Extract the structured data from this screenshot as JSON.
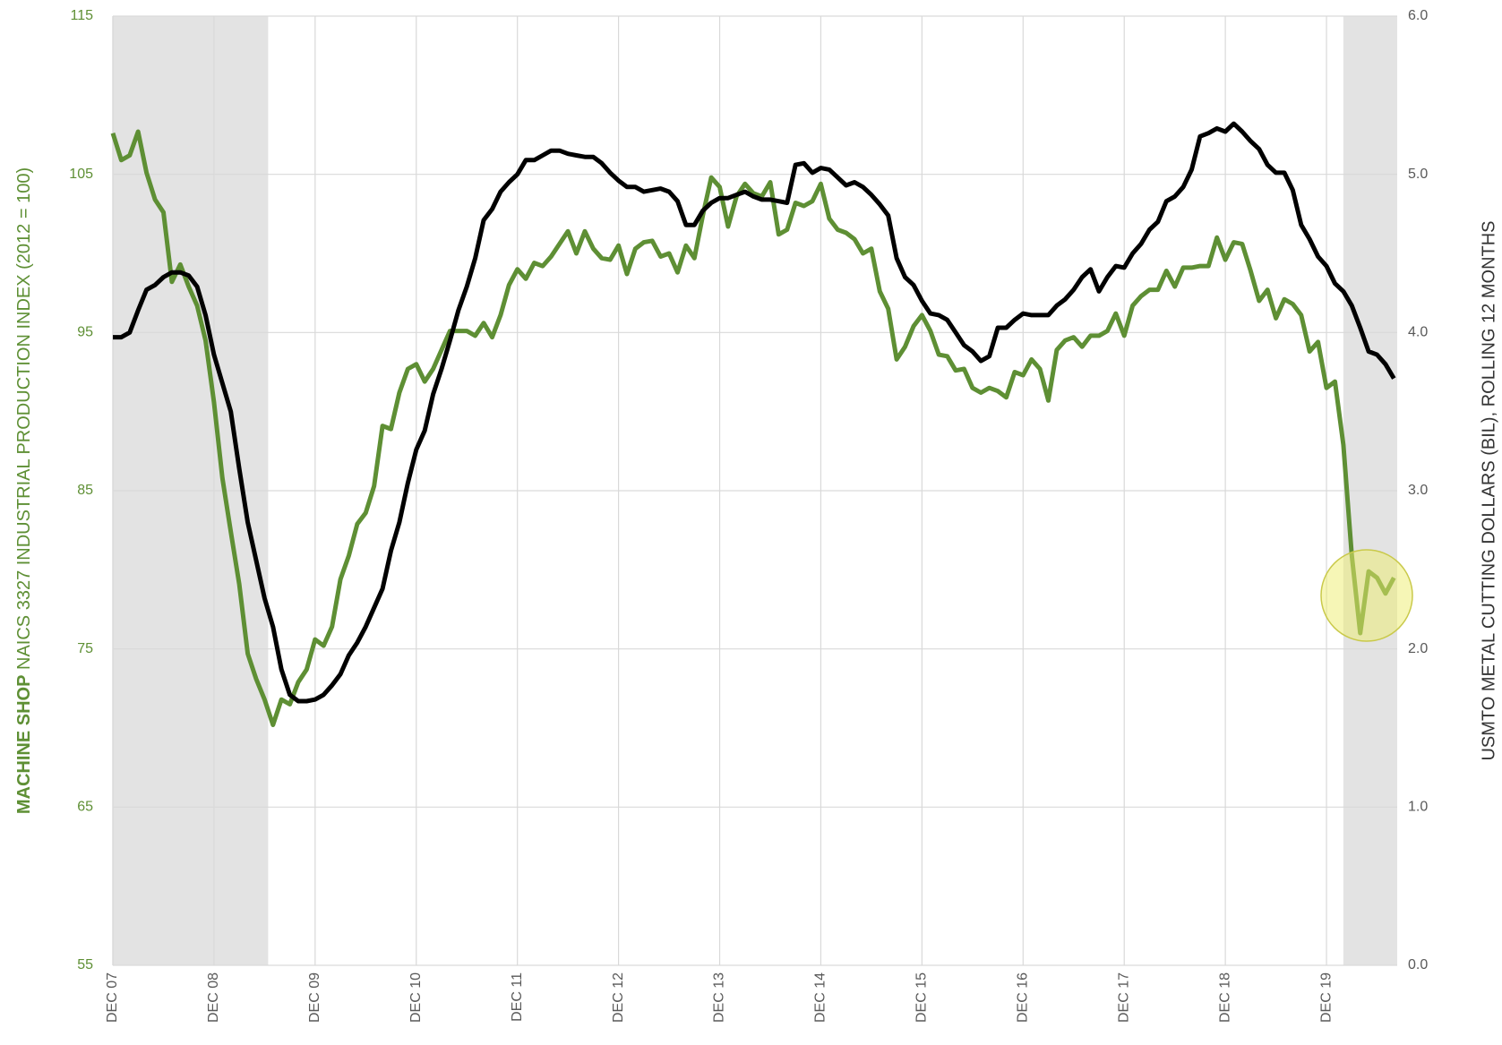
{
  "chart_data": {
    "type": "line",
    "y_label": {
      "bold": "MACHINE SHOP",
      "rest": "NAICS 3327 INDUSTRIAL PRODUCTION INDEX (2012 = 100)"
    },
    "y2_label": "USMTO METAL CUTTING DOLLARS (BIL), ROLLING 12 MONTHS",
    "categories": [
      "DEC 07",
      null,
      null,
      null,
      null,
      null,
      null,
      null,
      null,
      null,
      null,
      null,
      "DEC 08",
      null,
      null,
      null,
      null,
      null,
      null,
      null,
      null,
      null,
      null,
      null,
      "DEC 09",
      null,
      null,
      null,
      null,
      null,
      null,
      null,
      null,
      null,
      null,
      null,
      "DEC 10",
      null,
      null,
      null,
      null,
      null,
      null,
      null,
      null,
      null,
      null,
      null,
      "DEC 11",
      null,
      null,
      null,
      null,
      null,
      null,
      null,
      null,
      null,
      null,
      null,
      "DEC 12",
      null,
      null,
      null,
      null,
      null,
      null,
      null,
      null,
      null,
      null,
      null,
      "DEC 13",
      null,
      null,
      null,
      null,
      null,
      null,
      null,
      null,
      null,
      null,
      null,
      "DEC 14",
      null,
      null,
      null,
      null,
      null,
      null,
      null,
      null,
      null,
      null,
      null,
      "DEC 15",
      null,
      null,
      null,
      null,
      null,
      null,
      null,
      null,
      null,
      null,
      null,
      "DEC 16",
      null,
      null,
      null,
      null,
      null,
      null,
      null,
      null,
      null,
      null,
      null,
      "DEC 17",
      null,
      null,
      null,
      null,
      null,
      null,
      null,
      null,
      null,
      null,
      null,
      "DEC 18",
      null,
      null,
      null,
      null,
      null,
      null,
      null,
      null,
      null,
      null,
      null,
      "DEC 19",
      null,
      null,
      null,
      null,
      null,
      null,
      null,
      null
    ],
    "series": [
      {
        "color": "#5e8f34",
        "axis": "y",
        "values": [
          107.6,
          105.9,
          106.2,
          107.7,
          105.1,
          103.4,
          102.6,
          98.2,
          99.3,
          97.9,
          96.7,
          94.5,
          90.6,
          85.8,
          82.4,
          79.1,
          74.7,
          73.1,
          71.8,
          70.2,
          71.8,
          71.5,
          72.9,
          73.7,
          75.6,
          75.2,
          76.4,
          79.4,
          80.9,
          82.9,
          83.6,
          85.3,
          89.1,
          88.9,
          91.2,
          92.7,
          93.0,
          91.9,
          92.7,
          93.9,
          95.1,
          95.1,
          95.1,
          94.8,
          95.6,
          94.7,
          96.1,
          98.0,
          99.0,
          98.4,
          99.4,
          99.2,
          99.8,
          100.6,
          101.4,
          100.0,
          101.4,
          100.3,
          99.7,
          99.6,
          100.5,
          98.7,
          100.3,
          100.7,
          100.8,
          99.8,
          100.0,
          98.8,
          100.5,
          99.7,
          102.4,
          104.8,
          104.2,
          101.7,
          103.6,
          104.4,
          103.8,
          103.6,
          104.5,
          101.2,
          101.5,
          103.2,
          103.0,
          103.3,
          104.4,
          102.2,
          101.5,
          101.3,
          100.9,
          100.0,
          100.3,
          97.6,
          96.5,
          93.3,
          94.1,
          95.4,
          96.1,
          95.1,
          93.6,
          93.5,
          92.6,
          92.7,
          91.5,
          91.2,
          91.5,
          91.3,
          90.9,
          92.5,
          92.3,
          93.3,
          92.7,
          90.7,
          93.9,
          94.5,
          94.7,
          94.1,
          94.8,
          94.8,
          95.1,
          96.2,
          94.8,
          96.7,
          97.3,
          97.7,
          97.7,
          98.9,
          97.9,
          99.1,
          99.1,
          99.2,
          99.2,
          101.0,
          99.6,
          100.7,
          100.6,
          98.9,
          97.0,
          97.7,
          95.9,
          97.1,
          96.8,
          96.1,
          93.8,
          94.4,
          91.5,
          91.9,
          87.9,
          80.9,
          76.0,
          79.9,
          79.5,
          78.5,
          79.5
        ]
      },
      {
        "color": "#000000",
        "axis": "y2",
        "values": [
          3.97,
          3.97,
          4.0,
          4.14,
          4.27,
          4.3,
          4.35,
          4.38,
          4.38,
          4.36,
          4.29,
          4.11,
          3.86,
          3.68,
          3.5,
          3.14,
          2.8,
          2.56,
          2.32,
          2.14,
          1.87,
          1.71,
          1.67,
          1.67,
          1.68,
          1.71,
          1.77,
          1.84,
          1.96,
          2.04,
          2.14,
          2.26,
          2.38,
          2.62,
          2.8,
          3.05,
          3.26,
          3.38,
          3.61,
          3.77,
          3.95,
          4.14,
          4.29,
          4.47,
          4.71,
          4.78,
          4.89,
          4.95,
          5.0,
          5.09,
          5.09,
          5.12,
          5.15,
          5.15,
          5.13,
          5.12,
          5.11,
          5.11,
          5.07,
          5.01,
          4.96,
          4.92,
          4.92,
          4.89,
          4.9,
          4.91,
          4.89,
          4.83,
          4.68,
          4.68,
          4.77,
          4.82,
          4.85,
          4.85,
          4.87,
          4.89,
          4.86,
          4.84,
          4.84,
          4.83,
          4.82,
          5.06,
          5.07,
          5.01,
          5.04,
          5.03,
          4.98,
          4.93,
          4.95,
          4.92,
          4.87,
          4.81,
          4.74,
          4.47,
          4.35,
          4.3,
          4.2,
          4.12,
          4.11,
          4.08,
          4.0,
          3.92,
          3.88,
          3.82,
          3.85,
          4.03,
          4.03,
          4.08,
          4.12,
          4.11,
          4.11,
          4.11,
          4.17,
          4.21,
          4.27,
          4.35,
          4.4,
          4.26,
          4.35,
          4.42,
          4.41,
          4.5,
          4.56,
          4.65,
          4.7,
          4.83,
          4.86,
          4.92,
          5.03,
          5.24,
          5.26,
          5.29,
          5.27,
          5.32,
          5.27,
          5.21,
          5.16,
          5.06,
          5.01,
          5.01,
          4.9,
          4.68,
          4.59,
          4.48,
          4.42,
          4.31,
          4.26,
          4.17,
          4.03,
          3.88,
          3.86,
          3.8,
          3.71
        ]
      }
    ],
    "shaded": [
      {
        "from": 0,
        "to": 18
      },
      {
        "from": 146,
        "to": 152
      }
    ],
    "ylim": [
      55,
      115
    ],
    "yticks": [
      55,
      65,
      75,
      85,
      95,
      105,
      115
    ],
    "y2lim": [
      0,
      6
    ],
    "y2ticks": [
      {
        "value": 0,
        "label": "0.0"
      },
      {
        "value": 1,
        "label": "1.0"
      },
      {
        "value": 2,
        "label": "2.0"
      },
      {
        "value": 3,
        "label": "3.0"
      },
      {
        "value": 4,
        "label": "4.0"
      },
      {
        "value": 5,
        "label": "5.0"
      },
      {
        "value": 6,
        "label": "6.0"
      }
    ],
    "grid": true
  }
}
